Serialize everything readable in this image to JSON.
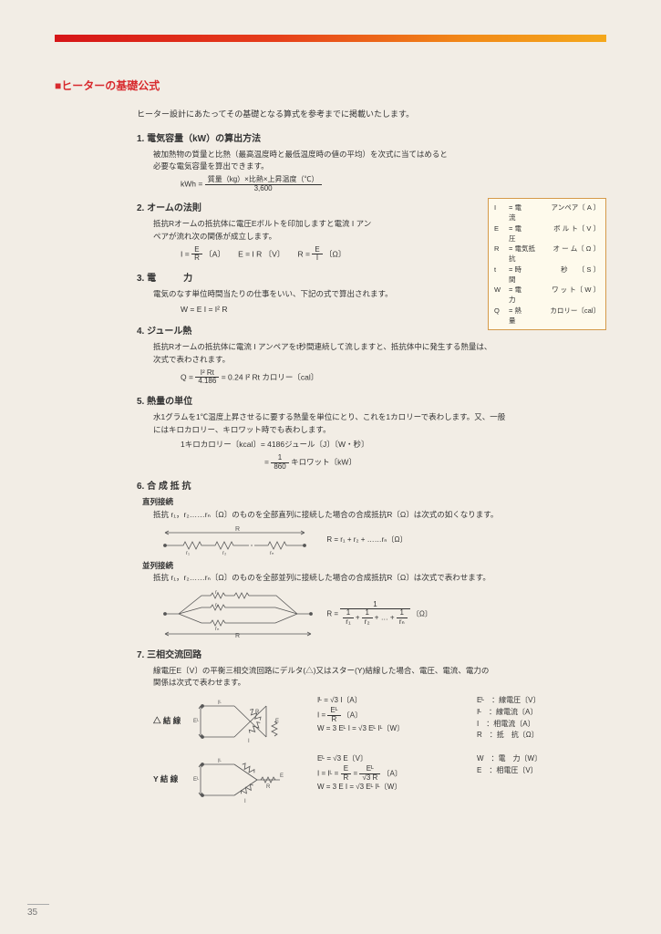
{
  "colors": {
    "bg": "#f2ede5",
    "accent": "#d82a2e",
    "gradient": [
      "#d61518",
      "#e63e1a",
      "#f28a18",
      "#f4a81c"
    ],
    "legend_border": "#d59a4a",
    "legend_bg": "#fefaec"
  },
  "page_number": "35",
  "title": "■ヒーターの基礎公式",
  "intro": "ヒーター設計にあたってその基礎となる算式を参考までに掲載いたします。",
  "sections": {
    "s1": {
      "head": "1. 電気容量（kW）の算出方法",
      "body1": "被加熱物の質量と比熱（最高温度時と最低温度時の値の平均）を次式に当てはめると",
      "body2": "必要な電気容量を算出できます。",
      "formula_left": "kWh =",
      "formula_num": "質量（kg）×比熱×上昇温度（℃）",
      "formula_den": "3,600"
    },
    "s2": {
      "head": "2. オームの法則",
      "body1": "抵抗Rオームの抵抗体に電圧Eボルトを印加しますと電流 I アン",
      "body2": "ペアが流れ次の関係が成立します。",
      "f1a": "I =",
      "f1_num": "E",
      "f1_den": "R",
      "f1b": "〔A〕",
      "f2": "E = I R 〔V〕",
      "f3a": "R =",
      "f3_num": "E",
      "f3_den": "I",
      "f3b": "〔Ω〕"
    },
    "s3": {
      "head": "3. 電　　　力",
      "body1": "電気のなす単位時間当たりの仕事をいい、下記の式で算出されます。",
      "f": "W = E I = I² R"
    },
    "s4": {
      "head": "4. ジュール熱",
      "body1": "抵抗Rオームの抵抗体に電流 I アンペアをt秒間連続して流しますと、抵抗体中に発生する熱量は、",
      "body2": "次式で表わされます。",
      "fa": "Q =",
      "f_num": "I² Rt",
      "f_den": "4.186",
      "fb": "= 0.24  I² Rt  カロリー〔cal〕"
    },
    "s5": {
      "head": "5. 熱量の単位",
      "body1": "水1グラムを1℃温度上昇させるに要する熱量を単位にとり、これを1カロリーで表わします。又、一般",
      "body2": "にはキロカロリー、キロワット時でも表わします。",
      "f1": "1キロカロリー〔kcal〕= 4186ジュール〔J〕〔W・秒〕",
      "f2a": "=",
      "f2_num": "1",
      "f2_den": "860",
      "f2b": "キロワット〔kW〕"
    },
    "s6": {
      "head": "6. 合 成 抵 抗",
      "sub1": "直列接続",
      "sub1_body": "抵抗 r₁，r₂……rₙ〔Ω〕のものを全部直列に接続した場合の合成抵抗R〔Ω〕は次式の如くなります。",
      "sub1_f": "R = r₁ + r₂ + ……rₙ〔Ω〕",
      "sub2": "並列接続",
      "sub2_body": "抵抗 r₁，r₂……rₙ〔Ω〕のものを全部並列に接続した場合の合成抵抗R〔Ω〕は次式で表わせます。",
      "sub2_fa": "R =",
      "sub2_num": "1",
      "sub2_d1n": "1",
      "sub2_d1d": "r₁",
      "sub2_d2n": "1",
      "sub2_d2d": "r₂",
      "sub2_plus": "+ … +",
      "sub2_d3n": "1",
      "sub2_d3d": "rₙ",
      "sub2_fb": "〔Ω〕"
    },
    "s7": {
      "head": "7. 三相交流回路",
      "body1": "線電圧E〔V〕の平衡三相交流回路にデルタ(△)又はスター(Y)結線した場合、電圧、電流、電力の",
      "body2": "関係は次式で表わせます。",
      "delta_label": "△ 結 線",
      "delta_f1": "Iᴸ = √3 I〔A〕",
      "delta_f2a": "I =",
      "delta_f2_num": "Eᴸ",
      "delta_f2_den": "R",
      "delta_f2b": "〔A〕",
      "delta_f3": "W = 3 Eᴸ I = √3 Eᴸ Iᴸ〔W〕",
      "y_label": "Y 結 線",
      "y_f1": "Eᴸ = √3 E〔V〕",
      "y_f2a": "I = Iᴸ =",
      "y_f2_n1": "E",
      "y_f2_d1": "R",
      "y_f2_eq": "=",
      "y_f2_n2": "Eᴸ",
      "y_f2_d2": "√3 R",
      "y_f2b": "〔A〕",
      "y_f3": "W = 3 E I = √3 Eᴸ Iᴸ〔W〕",
      "leg_EL": "Eᴸ　：線電圧〔V〕",
      "leg_IL": "Iᴸ　：線電流〔A〕",
      "leg_I": "I　：相電流〔A〕",
      "leg_R": "R　：抵　抗〔Ω〕",
      "leg_W": "W　：電　力〔W〕",
      "leg_E": "E　：相電圧〔V〕"
    }
  },
  "legend": [
    {
      "sym": "I",
      "eq": "= 電　　流",
      "unit": "アンペア〔 A 〕"
    },
    {
      "sym": "E",
      "eq": "= 電　　圧",
      "unit": "ボ ル ト〔 V 〕"
    },
    {
      "sym": "R",
      "eq": "= 電気抵抗",
      "unit": "オ ー ム〔 Ω 〕"
    },
    {
      "sym": "t",
      "eq": "= 時　　間",
      "unit": "秒　　〔 S 〕"
    },
    {
      "sym": "W",
      "eq": "= 電　　力",
      "unit": "ワ ッ ト〔 W 〕"
    },
    {
      "sym": "Q",
      "eq": "= 熱　　量",
      "unit": "カロリー〔cal〕"
    }
  ]
}
